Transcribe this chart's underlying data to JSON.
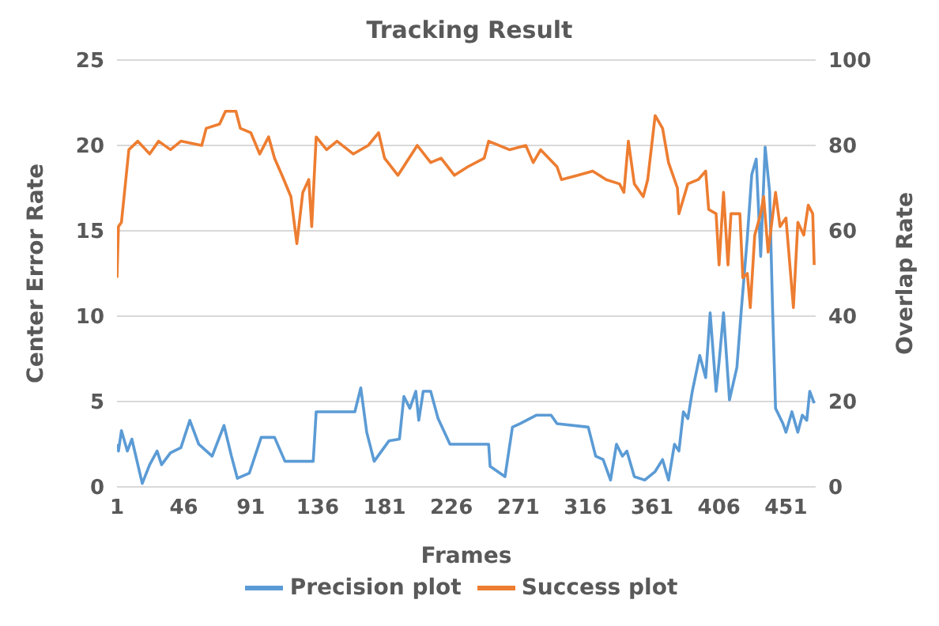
{
  "chart_data": {
    "type": "line",
    "title": "Tracking Result",
    "xlabel": "Frames",
    "ylabel": "Center Error Rate",
    "y2label": "Overlap Rate",
    "xlim": [
      1,
      471
    ],
    "xticks": [
      1,
      46,
      91,
      136,
      181,
      226,
      271,
      316,
      361,
      406,
      451
    ],
    "ylim": [
      0,
      25
    ],
    "yticks": [
      0,
      5,
      10,
      15,
      20,
      25
    ],
    "y2lim": [
      0,
      100
    ],
    "y2ticks": [
      0,
      20,
      40,
      60,
      80,
      100
    ],
    "grid": "y",
    "legend": "bottom",
    "marker": "none",
    "line_style": "solid",
    "series": [
      {
        "name": "Precision plot",
        "color": "#5b9bd5",
        "x": [
          1,
          2,
          4,
          8,
          11,
          18,
          23,
          28,
          31,
          37,
          44,
          50,
          56,
          65,
          73,
          78,
          82,
          90,
          98,
          107,
          114,
          133,
          135,
          161,
          165,
          169,
          174,
          184,
          191,
          194,
          198,
          202,
          204,
          207,
          212,
          217,
          225,
          232,
          251,
          252,
          262,
          267,
          272,
          283,
          293,
          297,
          318,
          323,
          328,
          333,
          337,
          341,
          344,
          349,
          356,
          363,
          368,
          372,
          376,
          379,
          382,
          385,
          388,
          393,
          397,
          400,
          404,
          406,
          409,
          413,
          418,
          421,
          425,
          428,
          431,
          434,
          437,
          440,
          442,
          444,
          449,
          451,
          455,
          459,
          462,
          465,
          467,
          470
        ],
        "values": [
          2.5,
          2.1,
          3.3,
          2.1,
          2.8,
          0.2,
          1.3,
          2.1,
          1.3,
          2.0,
          2.3,
          3.9,
          2.5,
          1.8,
          3.6,
          1.8,
          0.5,
          0.8,
          2.9,
          2.9,
          1.5,
          1.5,
          4.4,
          4.4,
          5.8,
          3.2,
          1.5,
          2.7,
          2.8,
          5.3,
          4.6,
          5.6,
          3.9,
          5.6,
          5.6,
          4.0,
          2.5,
          2.5,
          2.5,
          1.2,
          0.6,
          3.5,
          3.7,
          4.2,
          4.2,
          3.7,
          3.5,
          1.8,
          1.6,
          0.4,
          2.5,
          1.8,
          2.1,
          0.6,
          0.4,
          0.9,
          1.6,
          0.4,
          2.5,
          2.1,
          4.4,
          4.0,
          5.6,
          7.7,
          6.4,
          10.2,
          5.6,
          7.3,
          10.2,
          5.1,
          7.0,
          10.4,
          14.6,
          18.3,
          19.2,
          13.5,
          19.9,
          17.3,
          10.4,
          4.6,
          3.7,
          3.2,
          4.4,
          3.2,
          4.2,
          3.9,
          5.6,
          4.9
        ]
      },
      {
        "name": "Success plot",
        "color": "#ed7d31",
        "axis": "y2",
        "x": [
          1,
          2,
          4,
          9,
          15,
          23,
          29,
          37,
          44,
          58,
          61,
          70,
          74,
          81,
          84,
          91,
          97,
          103,
          107,
          112,
          118,
          122,
          126,
          130,
          132,
          135,
          142,
          149,
          160,
          170,
          177,
          181,
          190,
          203,
          212,
          219,
          228,
          237,
          248,
          251,
          265,
          276,
          281,
          286,
          297,
          300,
          311,
          321,
          330,
          339,
          342,
          345,
          349,
          355,
          358,
          363,
          368,
          372,
          378,
          379,
          385,
          392,
          397,
          399,
          404,
          406,
          409,
          412,
          414,
          420,
          422,
          425,
          427,
          430,
          434,
          436,
          439,
          444,
          447,
          451,
          456,
          459,
          463,
          466,
          469,
          470
        ],
        "values": [
          49,
          61,
          62,
          79,
          81,
          78,
          81,
          79,
          81,
          80,
          84,
          85,
          88,
          88,
          84,
          83,
          78,
          82,
          77,
          73,
          68,
          57,
          69,
          72,
          61,
          82,
          79,
          81,
          78,
          80,
          83,
          77,
          73,
          80,
          76,
          77,
          73,
          75,
          77,
          81,
          79,
          80,
          76,
          79,
          75,
          72,
          73,
          74,
          72,
          71,
          69,
          81,
          71,
          68,
          72,
          87,
          84,
          76,
          70,
          64,
          71,
          72,
          74,
          65,
          64,
          52,
          69,
          52,
          64,
          64,
          49,
          50,
          42,
          59,
          64,
          68,
          55,
          69,
          61,
          63,
          42,
          62,
          59,
          66,
          64,
          52
        ]
      }
    ]
  }
}
